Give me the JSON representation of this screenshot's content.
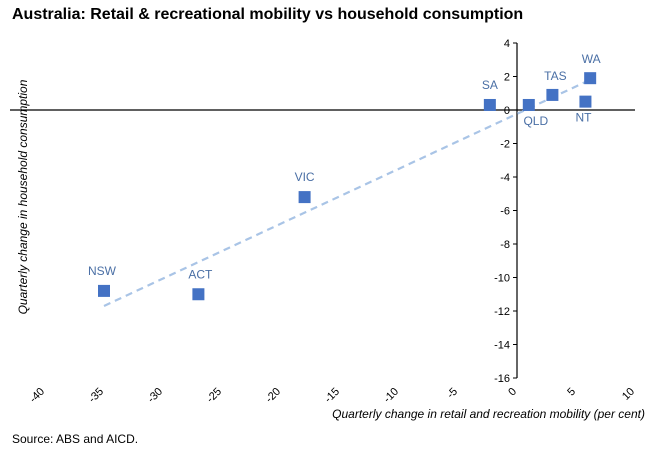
{
  "title": "Australia: Retail & recreational mobility vs household consumption",
  "source": "Source: ABS and AICD.",
  "colors": {
    "marker": "#4472C4",
    "trendline": "#A9C4E6",
    "label": "#4A6FA5",
    "axis": "#000000"
  },
  "chart_data": {
    "type": "scatter",
    "title": "Australia: Retail & recreational mobility vs household consumption",
    "xlabel": "Quarterly change in retail and recreation mobility (per cent)",
    "ylabel": "Quarterly change in household consumption",
    "xlim": [
      -40,
      10
    ],
    "ylim": [
      -16,
      4
    ],
    "xticks": [
      -40,
      -35,
      -30,
      -25,
      -20,
      -15,
      -10,
      -5,
      0,
      5,
      10
    ],
    "yticks": [
      4,
      2,
      0,
      -2,
      -4,
      -6,
      -8,
      -10,
      -12,
      -14,
      -16
    ],
    "grid": false,
    "points": [
      {
        "label": "NSW",
        "x": -35,
        "y": -10.8
      },
      {
        "label": "ACT",
        "x": -27,
        "y": -11.0
      },
      {
        "label": "VIC",
        "x": -18,
        "y": -5.2
      },
      {
        "label": "SA",
        "x": -2.3,
        "y": 0.3
      },
      {
        "label": "QLD",
        "x": 1.0,
        "y": 0.3
      },
      {
        "label": "TAS",
        "x": 3.0,
        "y": 0.9
      },
      {
        "label": "NT",
        "x": 5.8,
        "y": 0.5
      },
      {
        "label": "WA",
        "x": 6.2,
        "y": 1.9
      }
    ],
    "trendline": {
      "style": "dashed",
      "x": [
        -35,
        6.5
      ],
      "y": [
        -11.7,
        1.9
      ]
    }
  }
}
